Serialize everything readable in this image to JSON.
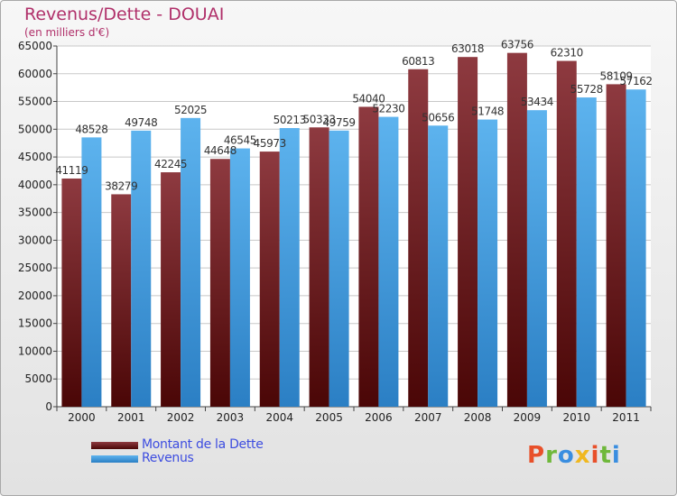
{
  "chart_data": {
    "type": "bar",
    "title": "Revenus/Dette - DOUAI",
    "subtitle": "(en milliers d'€)",
    "categories": [
      "2000",
      "2001",
      "2002",
      "2003",
      "2004",
      "2005",
      "2006",
      "2007",
      "2008",
      "2009",
      "2010",
      "2011"
    ],
    "series": [
      {
        "name": "Montant de la Dette",
        "color": "#7a1e22",
        "values": [
          41119,
          38279,
          42245,
          44648,
          45973,
          50333,
          54040,
          60813,
          63018,
          63756,
          62310,
          58109
        ],
        "labels": [
          "41119",
          "38279",
          "42245",
          "44648",
          "45973",
          "50333",
          "54040",
          "60813",
          "63018",
          "63756",
          "62310",
          "58109"
        ]
      },
      {
        "name": "Revenus",
        "color": "#4aa3e6",
        "values": [
          48528,
          49748,
          52025,
          46545,
          50213,
          49759,
          52230,
          50656,
          51748,
          53434,
          55728,
          57162
        ],
        "labels": [
          "48528",
          "49748",
          "52025",
          "46545",
          "50213",
          "49759",
          "52230",
          "50656",
          "51748",
          "53434",
          "55728",
          "57162"
        ]
      }
    ],
    "ylim": [
      0,
      65000
    ],
    "yticks": [
      0,
      5000,
      10000,
      15000,
      20000,
      25000,
      30000,
      35000,
      40000,
      45000,
      50000,
      55000,
      60000,
      65000
    ],
    "grid": true,
    "legend_position": "bottom-left"
  },
  "branding": {
    "logo_text": "Proxiti",
    "logo_colors": [
      "#e8502a",
      "#6fb83b",
      "#3a8ee0",
      "#f0b820",
      "#e8502a",
      "#6fb83b",
      "#3a8ee0"
    ]
  }
}
